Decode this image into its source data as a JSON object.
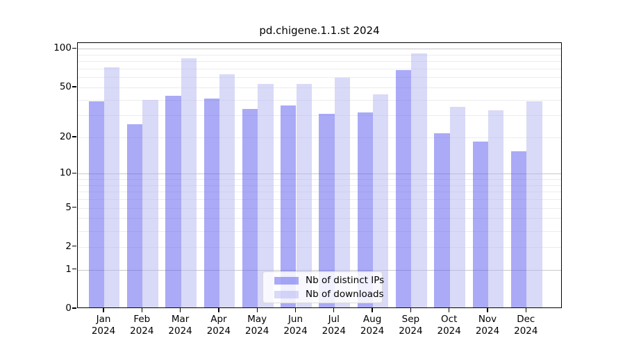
{
  "title": "pd.chigene.1.1.st 2024",
  "chart_data": {
    "type": "bar",
    "title": "pd.chigene.1.1.st 2024",
    "categories": [
      "Jan",
      "Feb",
      "Mar",
      "Apr",
      "May",
      "Jun",
      "Jul",
      "Aug",
      "Sep",
      "Oct",
      "Nov",
      "Dec"
    ],
    "year_label": "2024",
    "series": [
      {
        "name": "Nb of distinct IPs",
        "color": "#5555ee80",
        "values": [
          38,
          25,
          42,
          40,
          33,
          35,
          30,
          31,
          67,
          21,
          18,
          15
        ]
      },
      {
        "name": "Nb of downloads",
        "color": "#b3b3f180",
        "values": [
          70,
          39,
          82,
          62,
          52,
          52,
          58,
          43,
          90,
          34,
          32,
          38
        ]
      }
    ],
    "yticks": [
      100,
      50,
      20,
      10,
      5,
      2,
      1,
      0
    ],
    "ylim": [
      0,
      111
    ],
    "scale": "log1p",
    "grid": true,
    "legend_position": "lower center"
  },
  "legend": {
    "items": [
      {
        "label": "Nb of distinct IPs"
      },
      {
        "label": "Nb of downloads"
      }
    ]
  }
}
